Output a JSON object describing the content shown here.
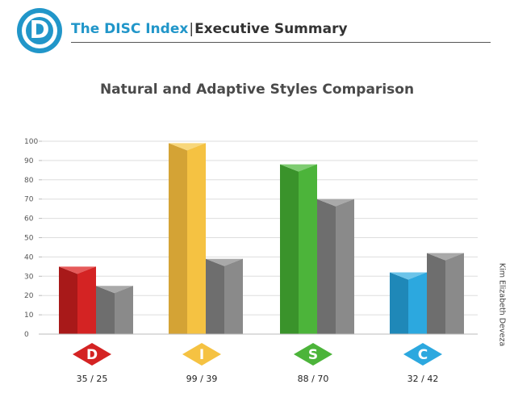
{
  "header": {
    "logo_letter": "D",
    "brand": "The DISC Index",
    "separator": "|",
    "section": "Executive Summary"
  },
  "side_credit": "Kim Elizabeth Deveza",
  "colors": {
    "brand": "#2196c9",
    "gray_front": "#8a8a8a",
    "gray_side": "#6e6e6e",
    "gray_top": "#a9a9a9"
  },
  "chart_data": {
    "type": "bar",
    "title": "Natural and Adaptive Styles Comparison",
    "ylim": [
      0,
      100
    ],
    "yticks": [
      0,
      10,
      20,
      30,
      40,
      50,
      60,
      70,
      80,
      90,
      100
    ],
    "grid": true,
    "categories": [
      "D",
      "I",
      "S",
      "C"
    ],
    "score_labels": [
      "35 / 25",
      "99 / 39",
      "88 / 70",
      "32 / 42"
    ],
    "category_colors": [
      {
        "front": "#d42323",
        "side": "#a81919",
        "top": "#e65a5a"
      },
      {
        "front": "#f5c242",
        "side": "#d4a335",
        "top": "#f8d77b"
      },
      {
        "front": "#4cb43a",
        "side": "#3a932b",
        "top": "#7fcc72"
      },
      {
        "front": "#2ca8df",
        "side": "#1f88b8",
        "top": "#6cc4ea"
      }
    ],
    "series": [
      {
        "values": [
          35,
          99,
          88,
          32
        ]
      },
      {
        "values": [
          25,
          39,
          70,
          42
        ]
      }
    ]
  }
}
